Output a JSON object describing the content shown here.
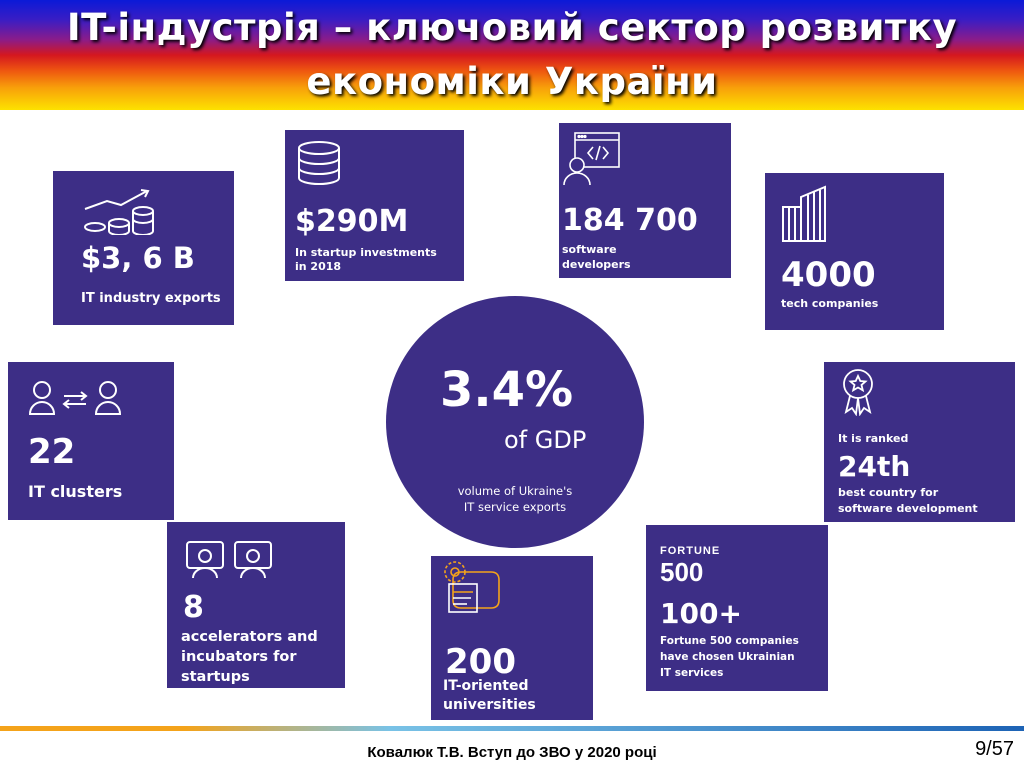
{
  "slide": {
    "title_line1": "IT-індустрія – ключовий сектор розвитку",
    "title_line2": "економіки України"
  },
  "center": {
    "value": "3.4%",
    "unit": "of GDP",
    "caption_line1": "volume of Ukraine's",
    "caption_line2": "IT service exports"
  },
  "tiles": {
    "exports": {
      "value": "$3, 6 B",
      "label": "IT industry exports",
      "icon": "growth-coins-icon"
    },
    "startup": {
      "value": "$290M",
      "label_line1": "In startup investments",
      "label_line2": "in 2018",
      "icon": "coin-stack-icon"
    },
    "developers": {
      "value": "184 700",
      "label_line1": "software",
      "label_line2": "developers",
      "icon": "developer-icon"
    },
    "companies": {
      "value": "4000",
      "label": "tech companies",
      "icon": "buildings-icon"
    },
    "clusters": {
      "value": "22",
      "label": "IT clusters",
      "icon": "people-exchange-icon"
    },
    "ranked": {
      "prefix": "It is ranked",
      "value": "24th",
      "label_line1": "best country for",
      "label_line2": "software development",
      "icon": "award-badge-icon"
    },
    "accelerators": {
      "value": "8",
      "label_line1": "accelerators and",
      "label_line2": "incubators for",
      "label_line3": "startups",
      "icon": "presentation-icon"
    },
    "universities": {
      "value": "200",
      "label_line1": "IT-oriented",
      "label_line2": "universities",
      "icon": "university-icon"
    },
    "fortune": {
      "logo_line1": "FORTUNE",
      "logo_line2": "500",
      "value": "100+",
      "label_line1": "Fortune 500 companies",
      "label_line2": "have chosen Ukrainian",
      "label_line3": "IT services"
    }
  },
  "footer": {
    "text": "Ковалюк Т.В. Вступ до ЗВО у 2020 році",
    "page": "9/57"
  },
  "colors": {
    "tile_bg": "#3d2e86",
    "text": "#ffffff"
  }
}
